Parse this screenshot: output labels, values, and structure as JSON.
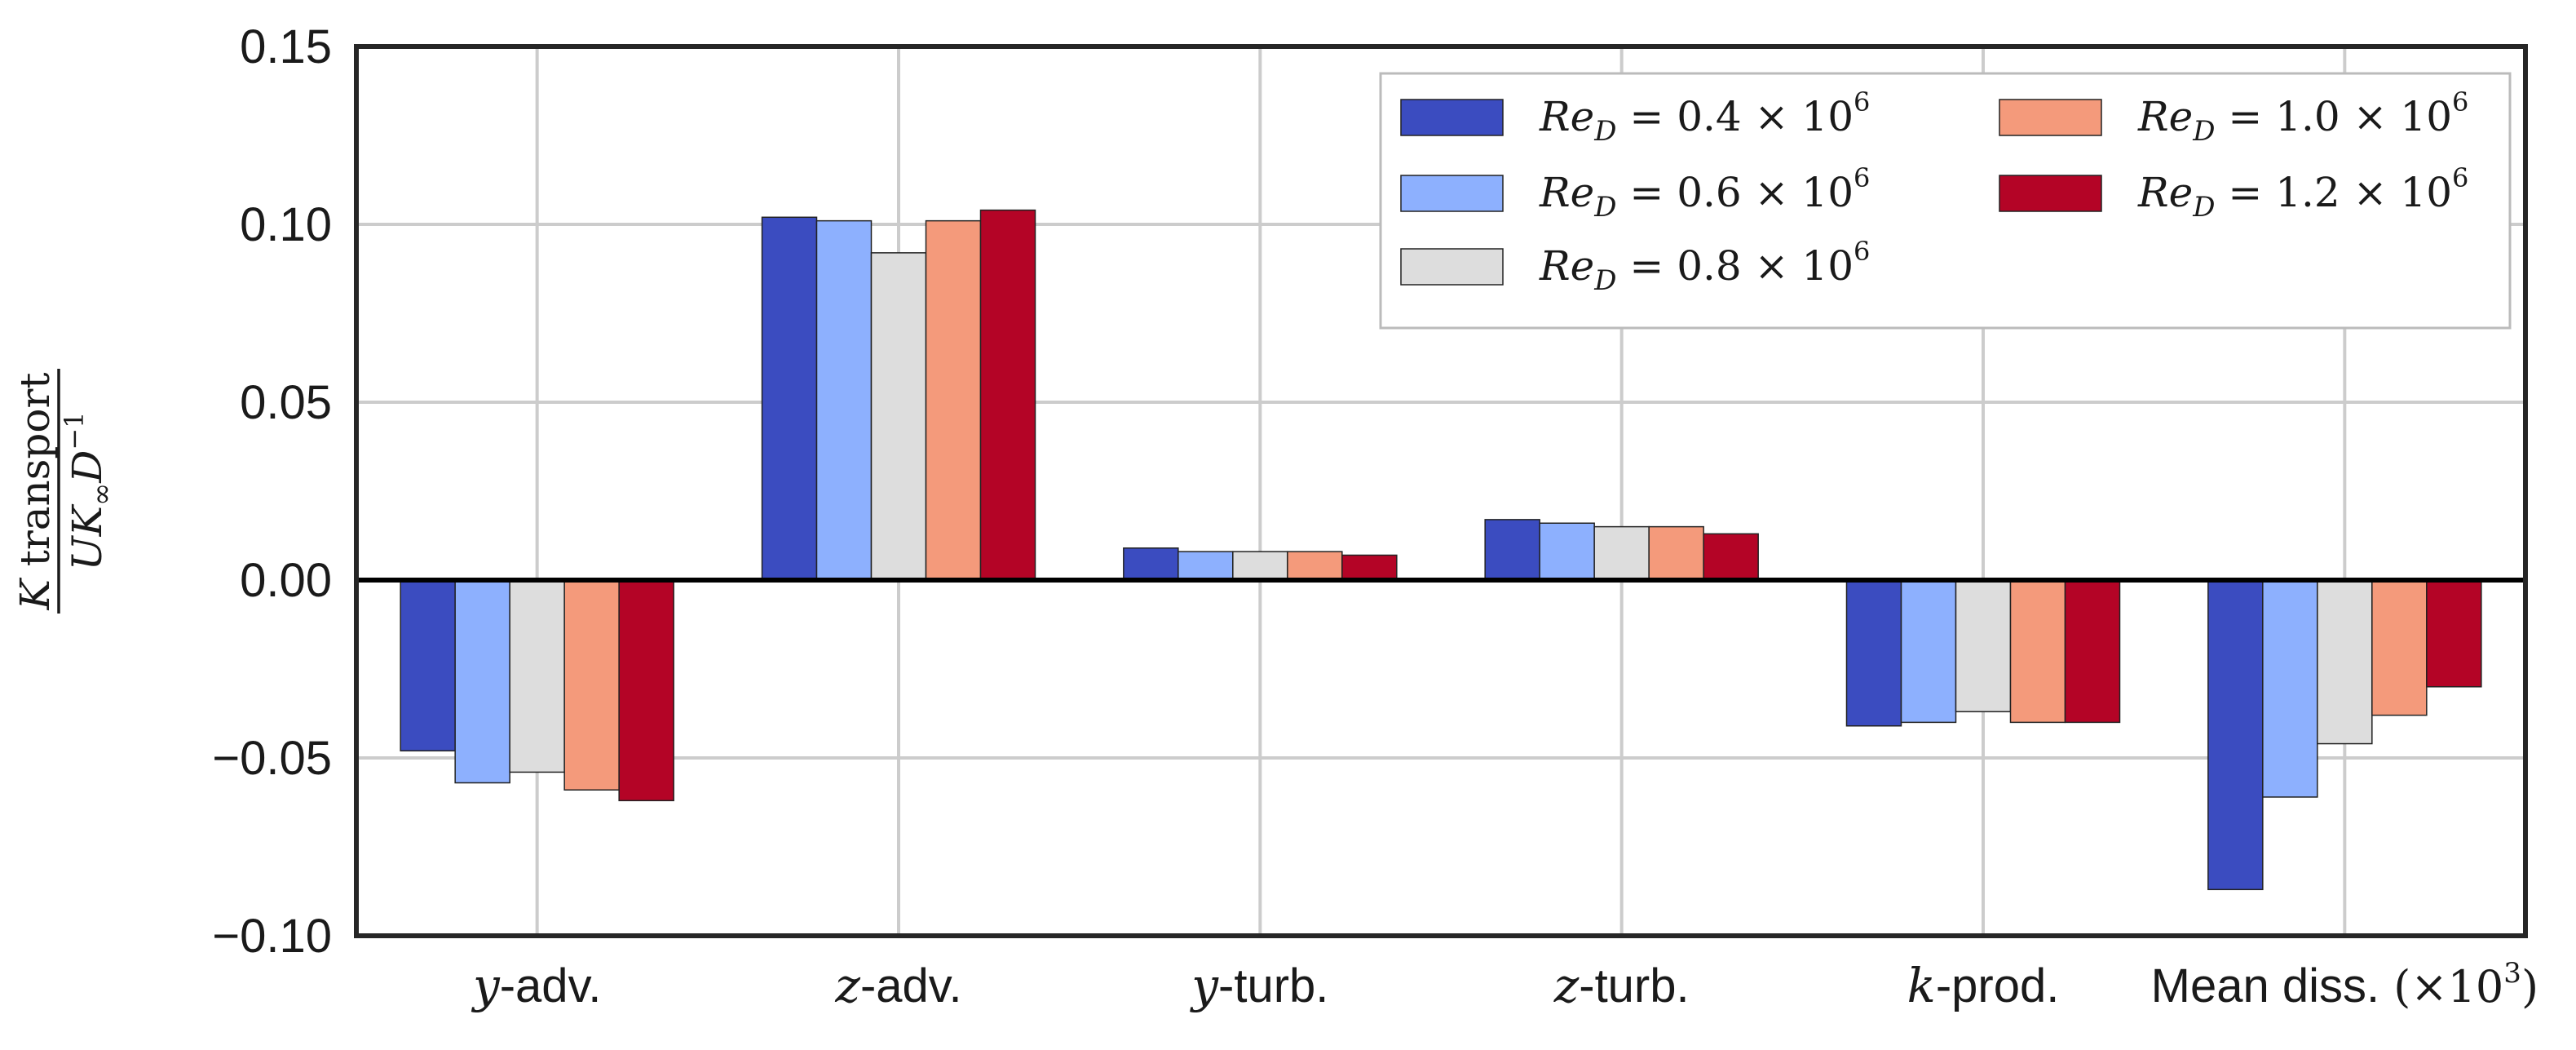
{
  "chart_data": {
    "type": "bar",
    "title": "",
    "categories": [
      {
        "var": "y",
        "text": "-adv."
      },
      {
        "var": "z",
        "text": "-adv."
      },
      {
        "var": "y",
        "text": "-turb."
      },
      {
        "var": "z",
        "text": "-turb."
      },
      {
        "var": "k",
        "text": "-prod."
      },
      {
        "var": "",
        "text": "Mean diss.",
        "suffix": "(×10",
        "suffix_sup": "3",
        "suffix_end": ")"
      }
    ],
    "series": [
      {
        "name": "Re_D = 0.4 × 10^6",
        "label_base": "0.4",
        "color": "#3b4cc0",
        "values": [
          -0.048,
          0.102,
          0.009,
          0.017,
          -0.041,
          -0.087
        ]
      },
      {
        "name": "Re_D = 0.6 × 10^6",
        "label_base": "0.6",
        "color": "#8db0fe",
        "values": [
          -0.057,
          0.101,
          0.008,
          0.016,
          -0.04,
          -0.061
        ]
      },
      {
        "name": "Re_D = 0.8 × 10^6",
        "label_base": "0.8",
        "color": "#dddddd",
        "values": [
          -0.054,
          0.092,
          0.008,
          0.015,
          -0.037,
          -0.046
        ]
      },
      {
        "name": "Re_D = 1.0 × 10^6",
        "label_base": "1.0",
        "color": "#f49a7b",
        "values": [
          -0.059,
          0.101,
          0.008,
          0.015,
          -0.04,
          -0.038
        ]
      },
      {
        "name": "Re_D = 1.2 × 10^6",
        "label_base": "1.2",
        "color": "#b40426",
        "values": [
          -0.062,
          0.104,
          0.007,
          0.013,
          -0.04,
          -0.03
        ]
      }
    ],
    "ylim": [
      -0.1,
      0.15
    ],
    "yticks": [
      -0.1,
      -0.05,
      0.0,
      0.05,
      0.1,
      0.15
    ],
    "ytick_labels": [
      "−0.10",
      "−0.05",
      "0.00",
      "0.05",
      "0.10",
      "0.15"
    ],
    "ylabel": {
      "numerator": "K transport",
      "denominator": "UK∞ D⁻¹"
    },
    "legend": {
      "placement": "top-right",
      "columns": 2
    },
    "grid": true
  }
}
